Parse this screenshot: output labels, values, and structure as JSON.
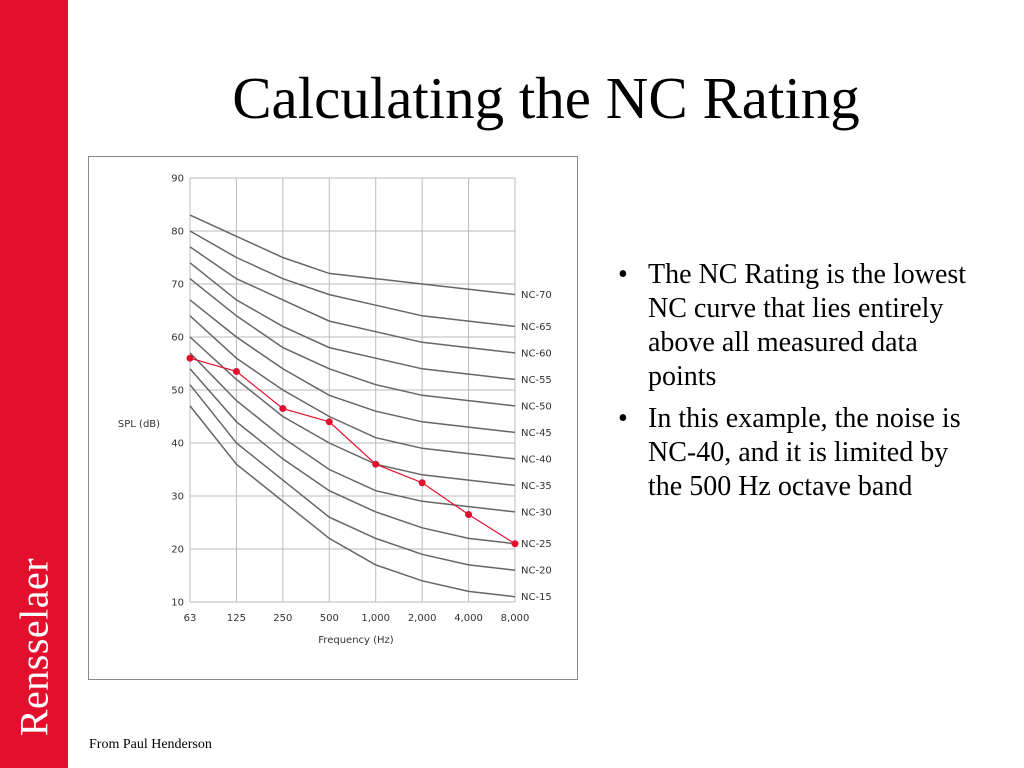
{
  "slide": {
    "title": "Calculating the NC Rating",
    "side_label": "Rensselaer",
    "bullets": [
      "The NC Rating is the lowest NC curve that lies entirely above all measured data points",
      "In this example, the noise is NC-40, and it is limited by the 500 Hz octave band"
    ],
    "bullet_glyph": "•",
    "source_note": "From Paul Henderson",
    "colors": {
      "sidebar": "#e3102d",
      "measured": "#e3102d",
      "curve": "#666666",
      "grid": "#bbbbbb"
    }
  },
  "chart_data": {
    "type": "line",
    "title": "",
    "xlabel": "Frequency (Hz)",
    "ylabel": "SPL (dB)",
    "categories": [
      "63",
      "125",
      "250",
      "500",
      "1,000",
      "2,000",
      "4,000",
      "8,000"
    ],
    "y_ticks": [
      "10",
      "20",
      "30",
      "40",
      "50",
      "60",
      "70",
      "80",
      "90"
    ],
    "ylim": [
      10,
      90
    ],
    "grid": true,
    "series": [
      {
        "name": "NC-70",
        "values": [
          83,
          79,
          75,
          72,
          71,
          70,
          69,
          68
        ]
      },
      {
        "name": "NC-65",
        "values": [
          80,
          75,
          71,
          68,
          66,
          64,
          63,
          62
        ]
      },
      {
        "name": "NC-60",
        "values": [
          77,
          71,
          67,
          63,
          61,
          59,
          58,
          57
        ]
      },
      {
        "name": "NC-55",
        "values": [
          74,
          67,
          62,
          58,
          56,
          54,
          53,
          52
        ]
      },
      {
        "name": "NC-50",
        "values": [
          71,
          64,
          58,
          54,
          51,
          49,
          48,
          47
        ]
      },
      {
        "name": "NC-45",
        "values": [
          67,
          60,
          54,
          49,
          46,
          44,
          43,
          42
        ]
      },
      {
        "name": "NC-40",
        "values": [
          64,
          56,
          50,
          45,
          41,
          39,
          38,
          37
        ]
      },
      {
        "name": "NC-35",
        "values": [
          60,
          52,
          45,
          40,
          36,
          34,
          33,
          32
        ]
      },
      {
        "name": "NC-30",
        "values": [
          57,
          48,
          41,
          35,
          31,
          29,
          28,
          27
        ]
      },
      {
        "name": "NC-25",
        "values": [
          54,
          44,
          37,
          31,
          27,
          24,
          22,
          21
        ]
      },
      {
        "name": "NC-20",
        "values": [
          51,
          40,
          33,
          26,
          22,
          19,
          17,
          16
        ]
      },
      {
        "name": "NC-15",
        "values": [
          47,
          36,
          29,
          22,
          17,
          14,
          12,
          11
        ]
      }
    ],
    "measured": {
      "values": [
        56,
        53.5,
        46.5,
        44,
        36,
        32.5,
        26.5,
        21
      ]
    }
  }
}
